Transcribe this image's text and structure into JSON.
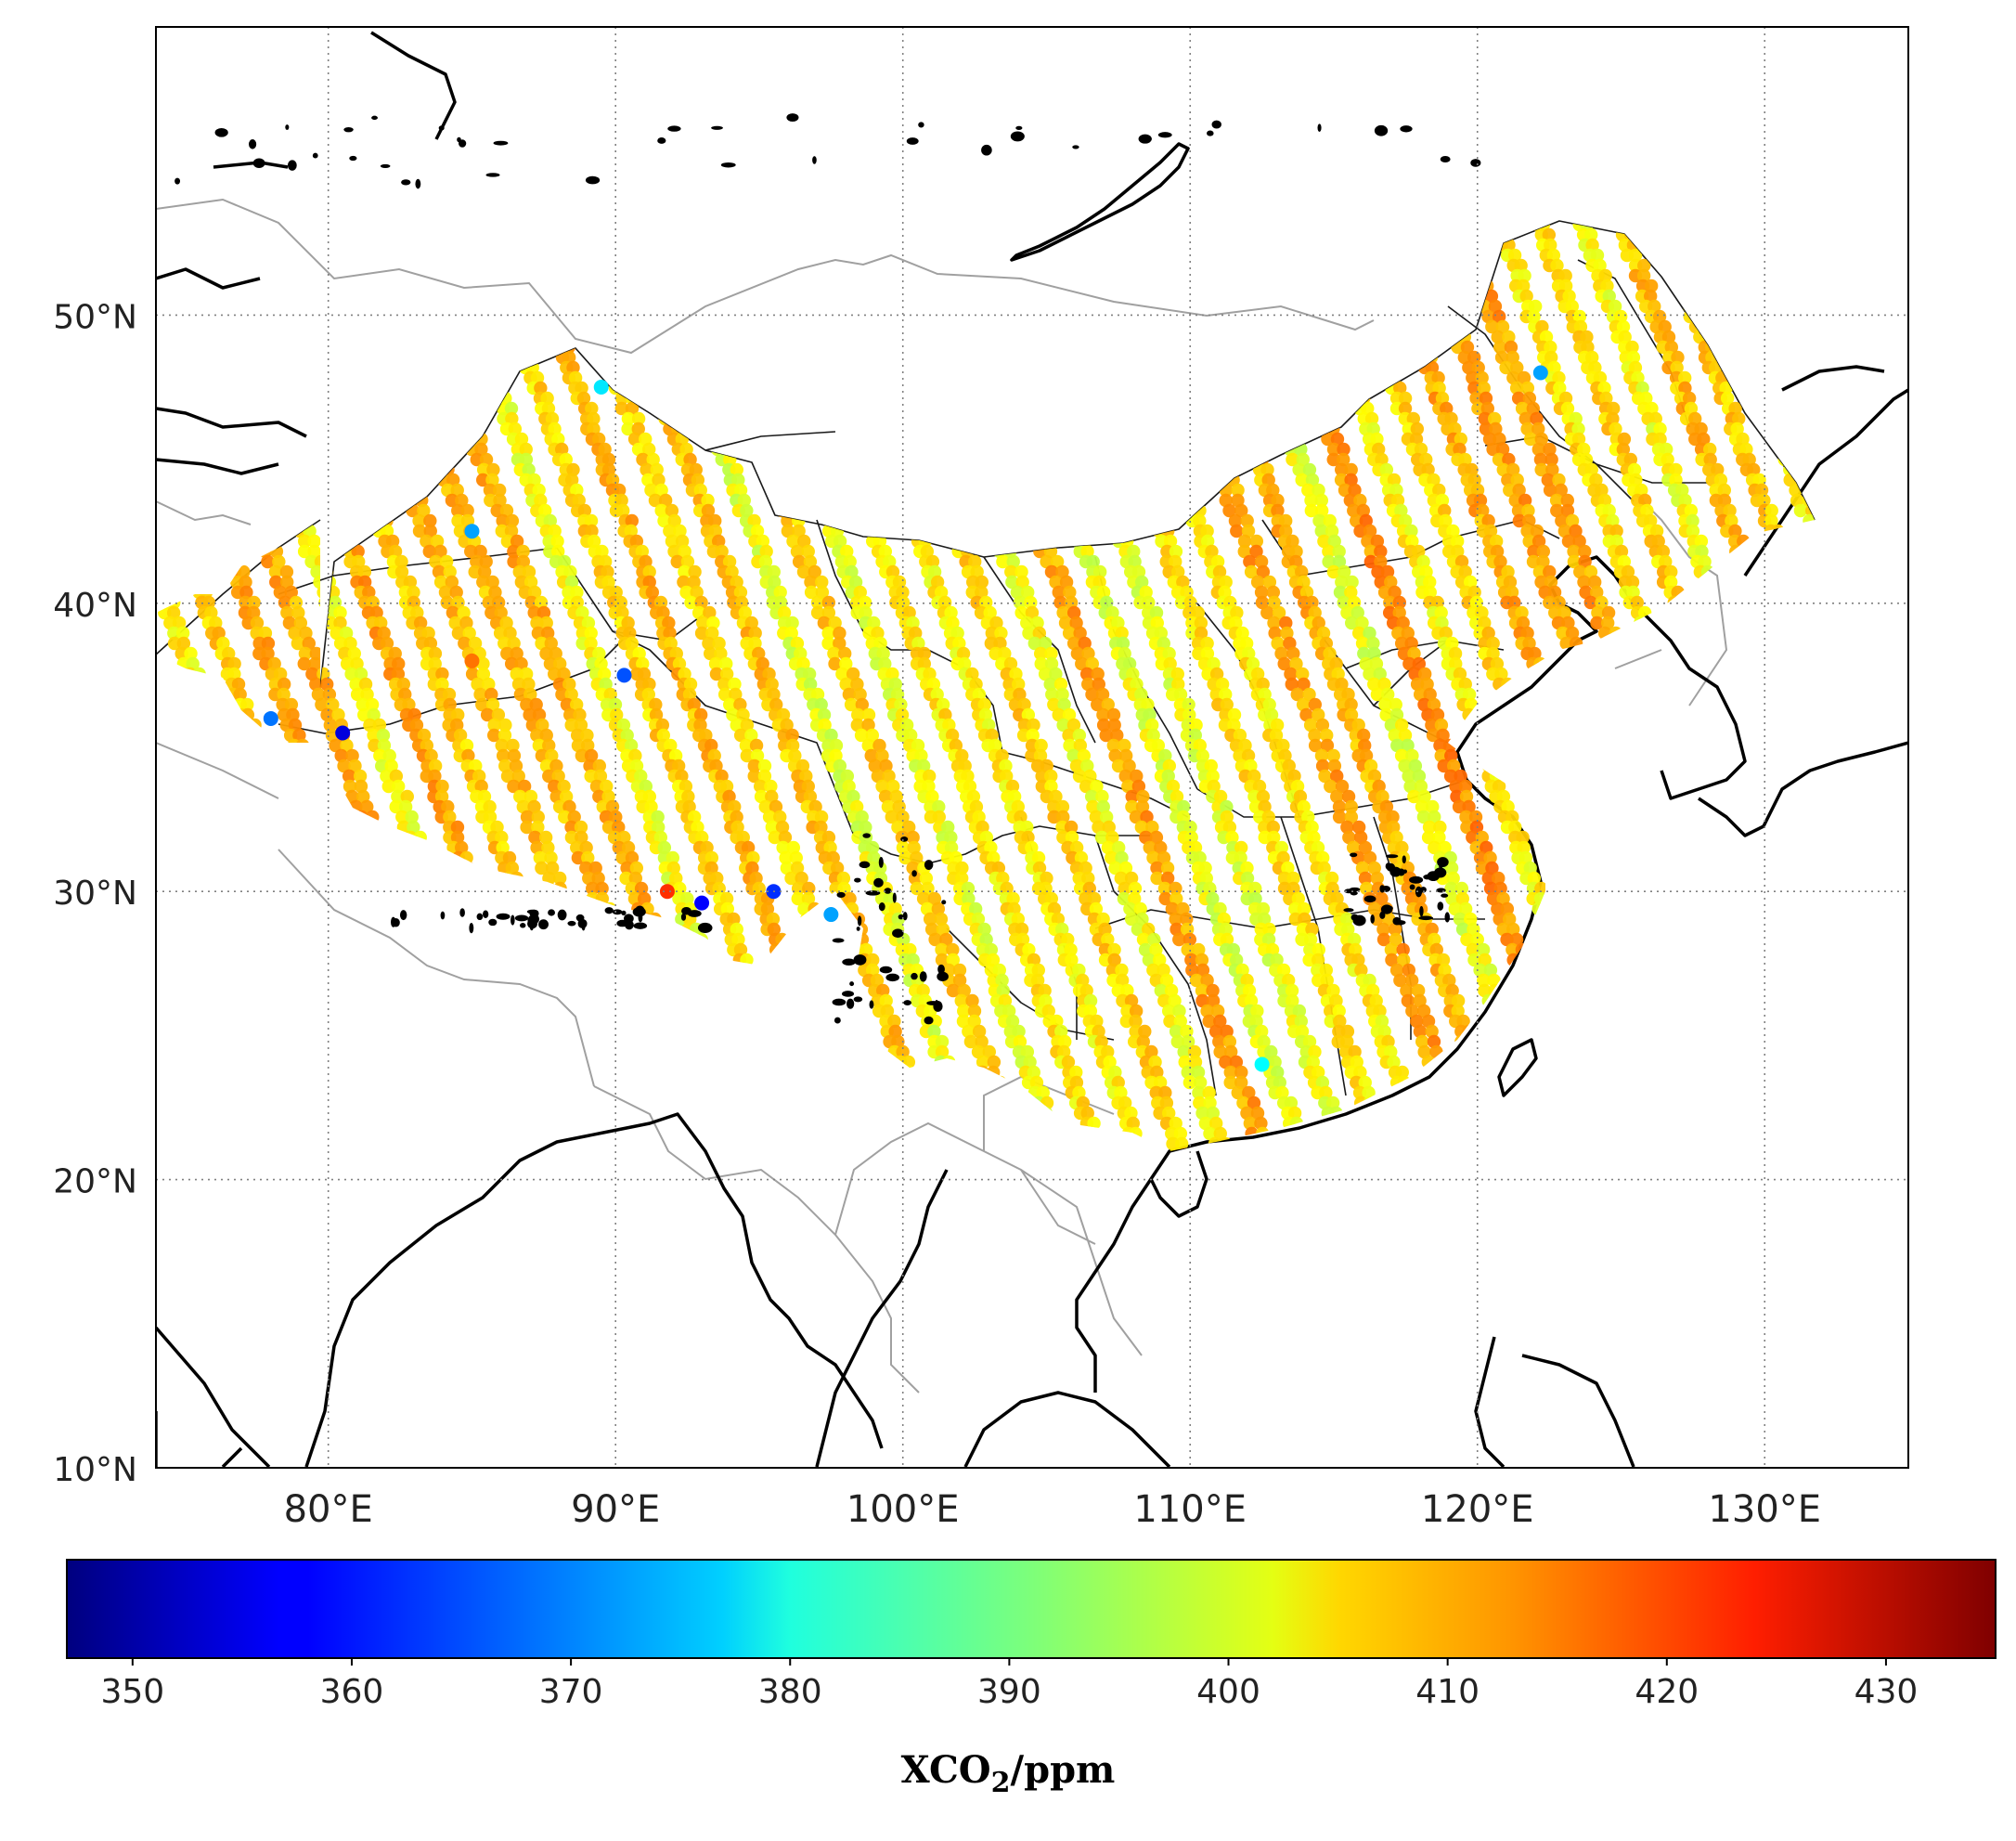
{
  "map": {
    "lon_range": [
      74,
      135
    ],
    "lat_range": [
      10,
      60
    ],
    "grid": true,
    "lon_ticks": [
      {
        "value": 80,
        "label": "80°E"
      },
      {
        "value": 90,
        "label": "90°E"
      },
      {
        "value": 100,
        "label": "100°E"
      },
      {
        "value": 110,
        "label": "110°E"
      },
      {
        "value": 120,
        "label": "120°E"
      },
      {
        "value": 130,
        "label": "130°E"
      }
    ],
    "lat_ticks": [
      {
        "value": 10,
        "label": "10°N"
      },
      {
        "value": 20,
        "label": "20°N"
      },
      {
        "value": 30,
        "label": "30°N"
      },
      {
        "value": 40,
        "label": "40°N"
      },
      {
        "value": 50,
        "label": "50°N"
      }
    ],
    "colors": {
      "coastline": "#000000",
      "admin_border": "#1a1a1a",
      "country_border": "#a0a0a0",
      "grid": "#808080"
    }
  },
  "colorbar": {
    "min": 347,
    "max": 435,
    "ticks": [
      350,
      360,
      370,
      380,
      390,
      400,
      410,
      420,
      430
    ],
    "tick_labels": [
      "350",
      "360",
      "370",
      "380",
      "390",
      "400",
      "410",
      "420",
      "430"
    ],
    "label_main": "XCO",
    "label_sub": "2",
    "label_unit": "/ppm",
    "colormap": "jet"
  },
  "xco2_swaths": {
    "dominant_range_ppm": [
      400,
      412
    ],
    "outlier_points": [
      {
        "lon": 89.5,
        "lat": 47.5,
        "xco2": 378
      },
      {
        "lon": 85.0,
        "lat": 42.5,
        "xco2": 372
      },
      {
        "lon": 80.5,
        "lat": 35.5,
        "xco2": 355
      },
      {
        "lon": 90.3,
        "lat": 37.5,
        "xco2": 365
      },
      {
        "lon": 78.0,
        "lat": 36.0,
        "xco2": 368
      },
      {
        "lon": 91.8,
        "lat": 30.0,
        "xco2": 420
      },
      {
        "lon": 95.5,
        "lat": 30.0,
        "xco2": 362
      },
      {
        "lon": 97.5,
        "lat": 29.2,
        "xco2": 372
      },
      {
        "lon": 122.2,
        "lat": 48.0,
        "xco2": 372
      },
      {
        "lon": 112.5,
        "lat": 24.0,
        "xco2": 380
      },
      {
        "lon": 93.0,
        "lat": 29.6,
        "xco2": 358
      },
      {
        "lon": 85.0,
        "lat": 38.0,
        "xco2": 414
      }
    ]
  }
}
